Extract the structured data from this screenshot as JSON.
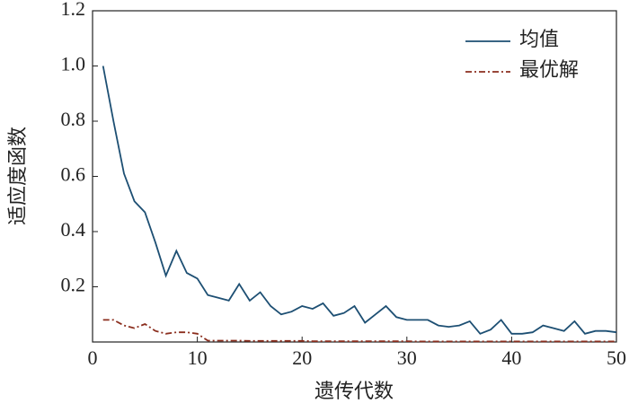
{
  "chart_data": {
    "type": "line",
    "x": [
      1,
      2,
      3,
      4,
      5,
      6,
      7,
      8,
      9,
      10,
      11,
      12,
      13,
      14,
      15,
      16,
      17,
      18,
      19,
      20,
      21,
      22,
      23,
      24,
      25,
      26,
      27,
      28,
      29,
      30,
      31,
      32,
      33,
      34,
      35,
      36,
      37,
      38,
      39,
      40,
      41,
      42,
      43,
      44,
      45,
      46,
      47,
      48,
      49,
      50
    ],
    "series": [
      {
        "name": "均值",
        "color": "#1d4f73",
        "dash": "solid",
        "values": [
          1.0,
          0.8,
          0.61,
          0.51,
          0.47,
          0.36,
          0.24,
          0.33,
          0.25,
          0.23,
          0.17,
          0.16,
          0.15,
          0.21,
          0.15,
          0.18,
          0.13,
          0.1,
          0.11,
          0.13,
          0.12,
          0.14,
          0.095,
          0.105,
          0.13,
          0.07,
          0.1,
          0.13,
          0.09,
          0.08,
          0.08,
          0.08,
          0.06,
          0.055,
          0.06,
          0.075,
          0.03,
          0.045,
          0.08,
          0.03,
          0.03,
          0.035,
          0.06,
          0.05,
          0.04,
          0.075,
          0.03,
          0.04,
          0.04,
          0.035
        ]
      },
      {
        "name": "最优解",
        "color": "#8b2e1e",
        "dash": "dashdot",
        "values": [
          0.08,
          0.08,
          0.06,
          0.05,
          0.065,
          0.04,
          0.03,
          0.035,
          0.035,
          0.03,
          0.005,
          0.005,
          0.005,
          0.005,
          0.004,
          0.004,
          0.004,
          0.004,
          0.004,
          0.004,
          0.003,
          0.003,
          0.003,
          0.003,
          0.003,
          0.003,
          0.003,
          0.003,
          0.003,
          0.003,
          0.002,
          0.002,
          0.002,
          0.002,
          0.002,
          0.002,
          0.002,
          0.002,
          0.002,
          0.002,
          0.002,
          0.002,
          0.002,
          0.002,
          0.002,
          0.002,
          0.002,
          0.002,
          0.002,
          0.002
        ]
      }
    ],
    "xlabel": "遗传代数",
    "ylabel": "适应度函数",
    "xlim": [
      0,
      50
    ],
    "xticks": [
      0,
      10,
      20,
      30,
      40,
      50
    ],
    "ylim": [
      0,
      1.2
    ],
    "yticks": [
      0.2,
      0.4,
      0.6,
      0.8,
      {
        "value": 1,
        "label": "1.0"
      },
      1.2
    ],
    "grid": false,
    "legend": "upper-right"
  }
}
